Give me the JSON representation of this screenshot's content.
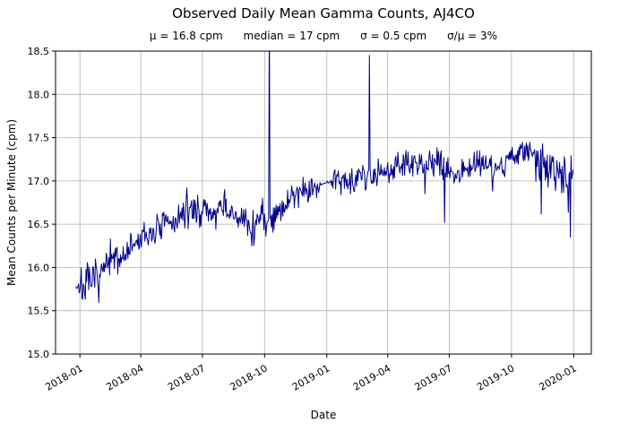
{
  "title": "Observed Daily Mean Gamma Counts, AJ4CO",
  "subtitle": "μ = 16.8 cpm      median = 17 cpm      σ = 0.5 cpm      σ/μ = 3%",
  "chart_data": {
    "type": "line",
    "title": "Observed Daily Mean Gamma Counts, AJ4CO",
    "stats": {
      "mu": "16.8 cpm",
      "median": "17 cpm",
      "sigma": "0.5 cpm",
      "sigma_over_mu": "3%"
    },
    "xlabel": "Date",
    "ylabel": "Mean Counts per Minute (cpm)",
    "ylim": [
      15.0,
      18.5
    ],
    "yticks": [
      15.0,
      15.5,
      16.0,
      16.5,
      17.0,
      17.5,
      18.0,
      18.5
    ],
    "xticks": [
      "2018-01",
      "2018-04",
      "2018-07",
      "2018-10",
      "2019-01",
      "2019-04",
      "2019-07",
      "2019-10",
      "2020-01"
    ],
    "xtick_dates": [
      "2018-01-01",
      "2018-04-01",
      "2018-07-01",
      "2018-10-01",
      "2019-01-01",
      "2019-04-01",
      "2019-07-01",
      "2019-10-01",
      "2020-01-01"
    ],
    "xlim": [
      "2017-11-26",
      "2020-01-27"
    ],
    "grid": true,
    "grid_color": "#b0b0b0",
    "line_color": "#00008b",
    "series_start": "2017-12-26",
    "series_end": "2019-12-31",
    "trend": [
      [
        "2017-12-26",
        15.82
      ],
      [
        "2018-01-04",
        15.76
      ],
      [
        "2018-01-12",
        15.8
      ],
      [
        "2018-01-20",
        15.82
      ],
      [
        "2018-01-28",
        15.9
      ],
      [
        "2018-02-05",
        15.96
      ],
      [
        "2018-02-12",
        16.02
      ],
      [
        "2018-02-20",
        16.08
      ],
      [
        "2018-03-01",
        16.1
      ],
      [
        "2018-03-10",
        16.18
      ],
      [
        "2018-03-20",
        16.24
      ],
      [
        "2018-04-01",
        16.32
      ],
      [
        "2018-04-10",
        16.36
      ],
      [
        "2018-04-20",
        16.42
      ],
      [
        "2018-05-01",
        16.46
      ],
      [
        "2018-05-12",
        16.5
      ],
      [
        "2018-05-24",
        16.55
      ],
      [
        "2018-06-05",
        16.62
      ],
      [
        "2018-06-15",
        16.68
      ],
      [
        "2018-06-25",
        16.65
      ],
      [
        "2018-07-05",
        16.66
      ],
      [
        "2018-07-15",
        16.62
      ],
      [
        "2018-07-25",
        16.64
      ],
      [
        "2018-08-05",
        16.68
      ],
      [
        "2018-08-15",
        16.6
      ],
      [
        "2018-08-25",
        16.55
      ],
      [
        "2018-09-05",
        16.5
      ],
      [
        "2018-09-15",
        16.48
      ],
      [
        "2018-09-25",
        16.55
      ],
      [
        "2018-10-05",
        16.58
      ],
      [
        "2018-10-15",
        16.62
      ],
      [
        "2018-10-25",
        16.68
      ],
      [
        "2018-11-05",
        16.75
      ],
      [
        "2018-11-15",
        16.85
      ],
      [
        "2018-11-25",
        16.9
      ],
      [
        "2018-12-05",
        16.92
      ],
      [
        "2018-12-15",
        16.94
      ],
      [
        "2018-12-22",
        16.95
      ],
      [
        "2019-01-08",
        17.0
      ],
      [
        "2019-01-20",
        17.02
      ],
      [
        "2019-02-01",
        17.04
      ],
      [
        "2019-02-15",
        17.03
      ],
      [
        "2019-03-01",
        17.06
      ],
      [
        "2019-03-15",
        17.1
      ],
      [
        "2019-04-01",
        17.14
      ],
      [
        "2019-04-15",
        17.18
      ],
      [
        "2019-05-01",
        17.2
      ],
      [
        "2019-05-15",
        17.16
      ],
      [
        "2019-06-01",
        17.2
      ],
      [
        "2019-06-15",
        17.18
      ],
      [
        "2019-07-01",
        17.12
      ],
      [
        "2019-07-15",
        17.1
      ],
      [
        "2019-08-01",
        17.18
      ],
      [
        "2019-08-15",
        17.22
      ],
      [
        "2019-09-01",
        17.18
      ],
      [
        "2019-09-15",
        17.16
      ],
      [
        "2019-10-01",
        17.28
      ],
      [
        "2019-10-15",
        17.34
      ],
      [
        "2019-11-01",
        17.3
      ],
      [
        "2019-11-15",
        17.18
      ],
      [
        "2019-12-01",
        17.12
      ],
      [
        "2019-12-15",
        17.12
      ],
      [
        "2019-12-31",
        17.05
      ]
    ],
    "events": [
      [
        "2018-06-08",
        16.92
      ],
      [
        "2018-08-03",
        16.9
      ],
      [
        "2018-09-12",
        16.25
      ],
      [
        "2018-10-08",
        18.9
      ],
      [
        "2019-03-05",
        18.45
      ],
      [
        "2019-05-26",
        16.85
      ],
      [
        "2019-06-24",
        16.52
      ],
      [
        "2019-09-03",
        16.88
      ],
      [
        "2019-11-14",
        16.62
      ],
      [
        "2019-12-27",
        16.35
      ]
    ],
    "smooth_ranges": [
      [
        "2018-12-23",
        "2019-01-07"
      ]
    ],
    "noisy_ranges": [
      [
        "2018-01-01",
        "2018-03-01",
        1.3
      ],
      [
        "2018-09-01",
        "2018-10-01",
        1.5
      ],
      [
        "2019-11-01",
        "2019-12-31",
        1.7
      ]
    ],
    "noise": {
      "sigma": 0.085,
      "seed": 7
    }
  }
}
